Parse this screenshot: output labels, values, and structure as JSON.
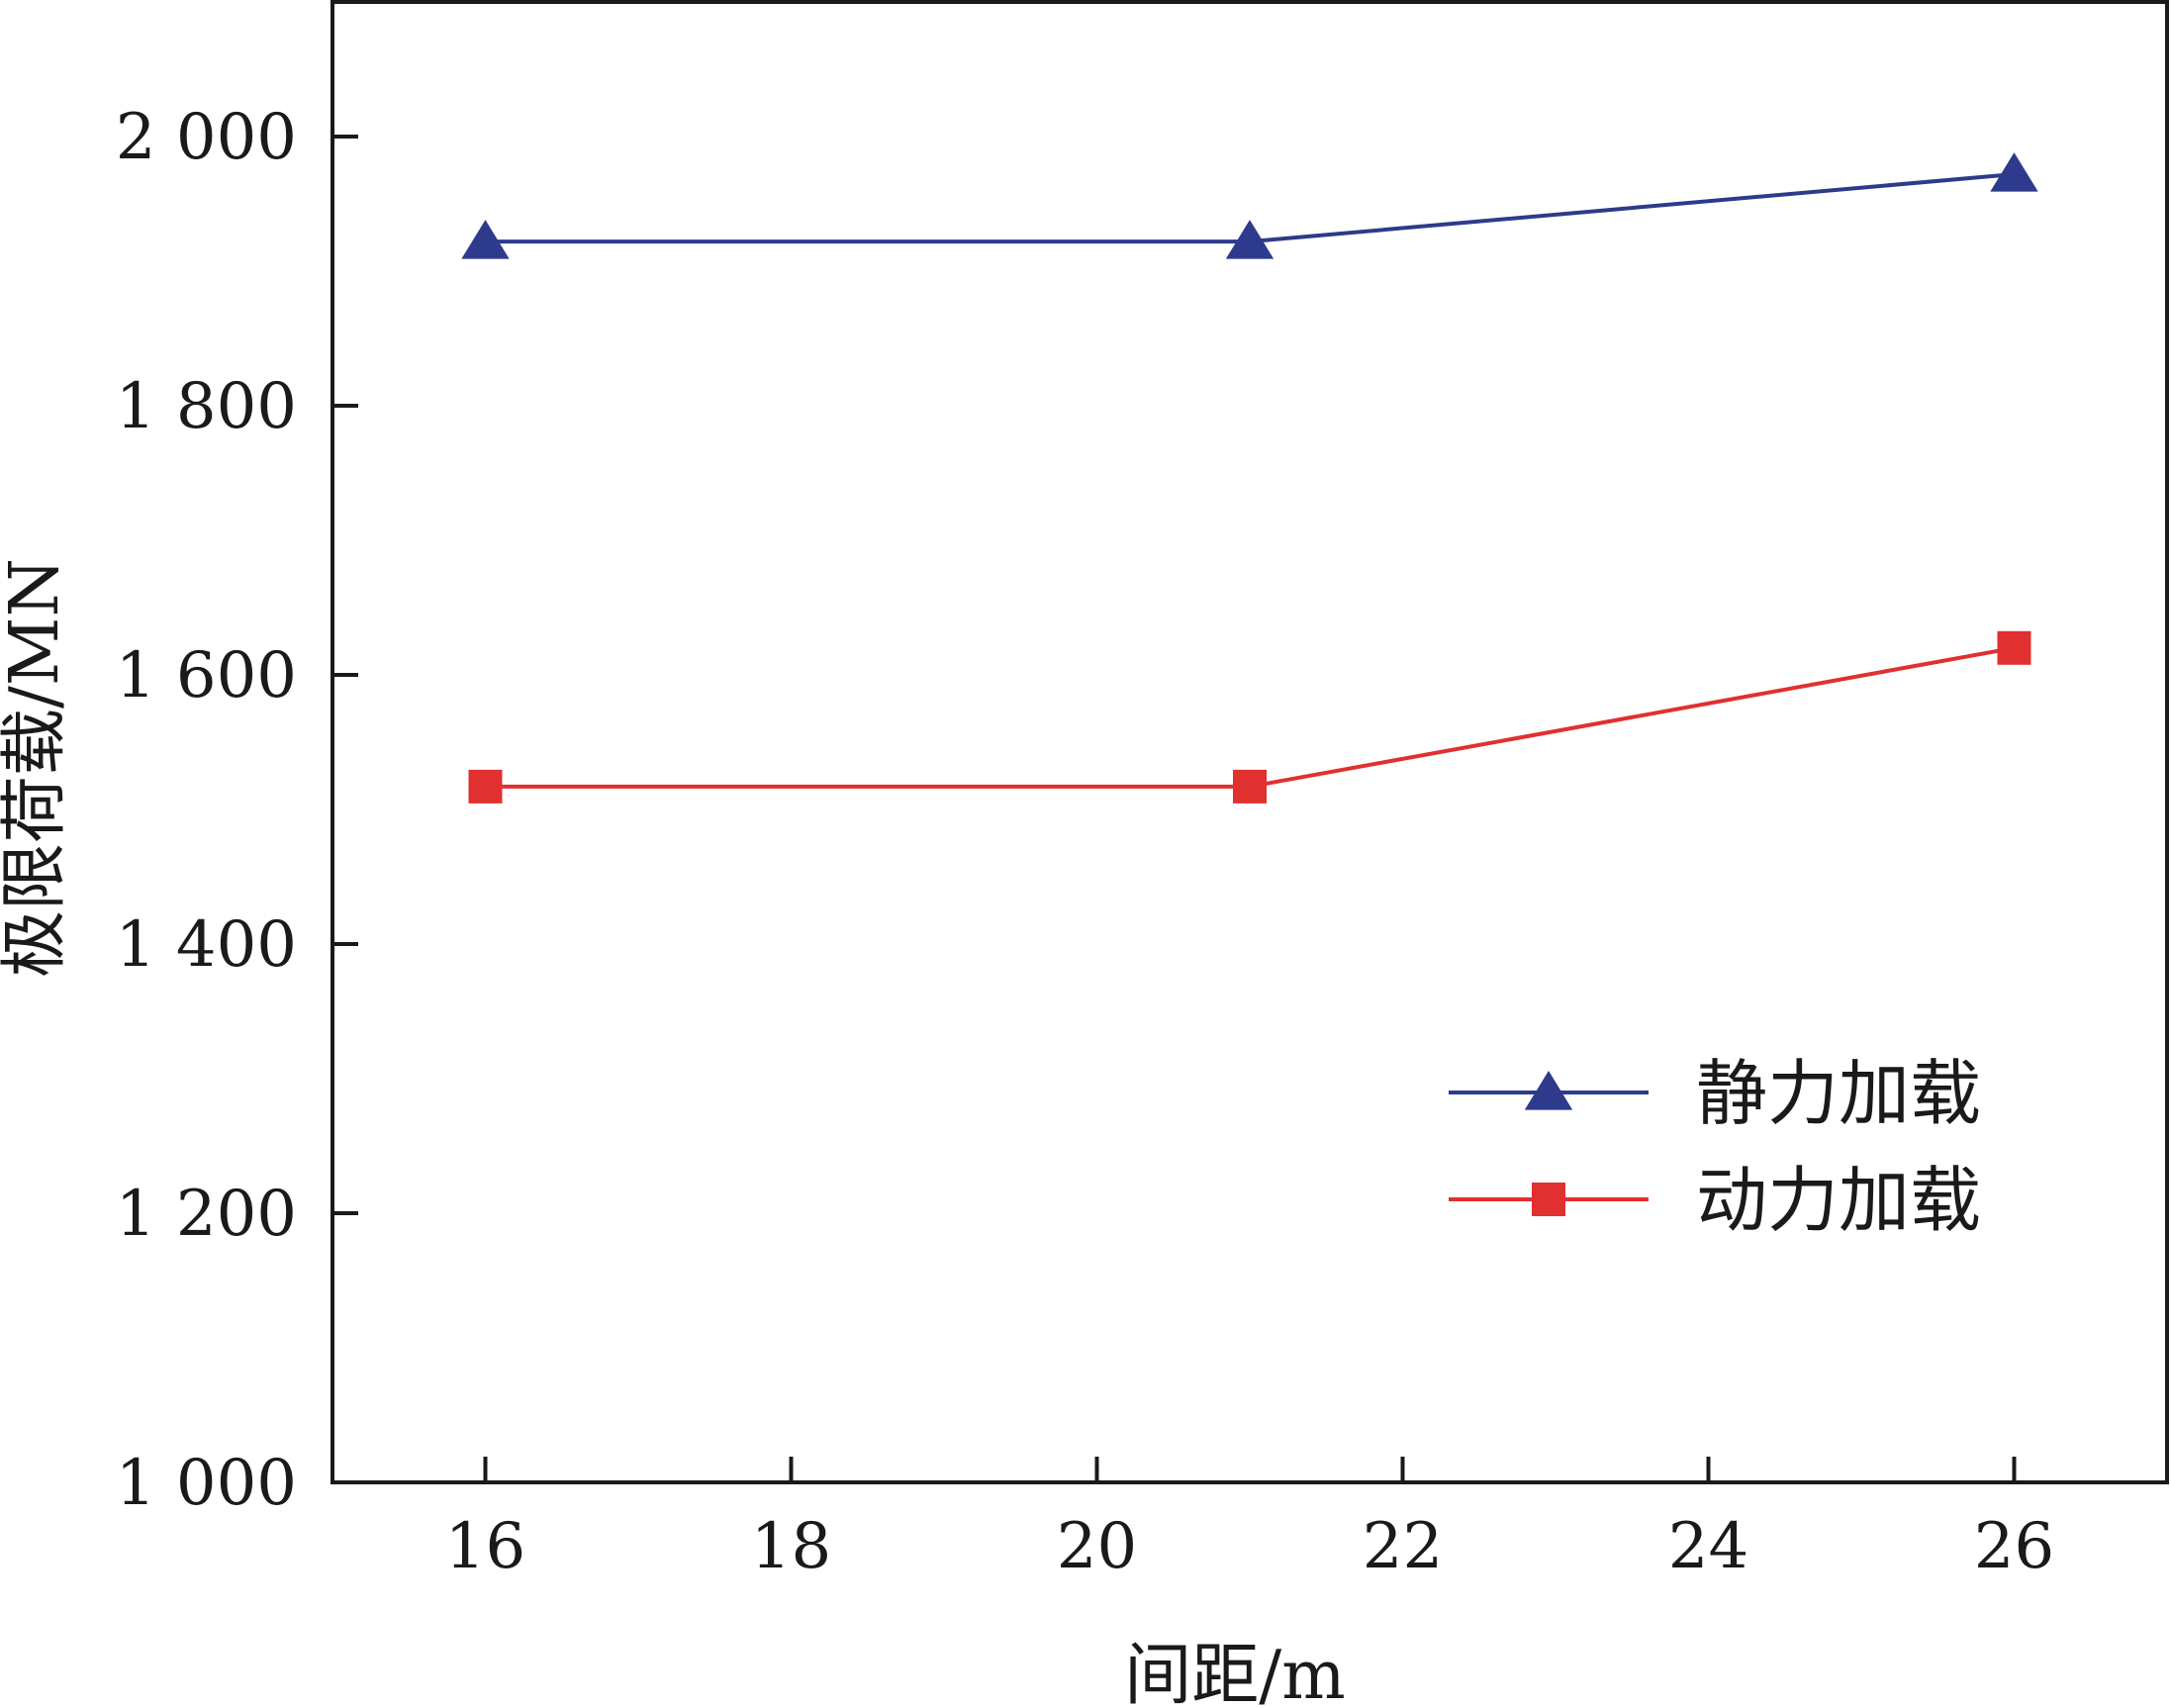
{
  "chart_data": {
    "type": "line",
    "xlabel": "间距/m",
    "ylabel": "极限荷载/MN",
    "xlim": [
      15,
      27
    ],
    "ylim": [
      1000,
      2100
    ],
    "x_ticks": [
      16,
      18,
      20,
      22,
      24,
      26
    ],
    "y_ticks": [
      1000,
      1200,
      1400,
      1600,
      1800,
      2000
    ],
    "x_tick_labels": [
      "16",
      "18",
      "20",
      "22",
      "24",
      "26"
    ],
    "y_tick_labels": [
      "1 000",
      "1 200",
      "1 400",
      "1 600",
      "1 800",
      "2 000"
    ],
    "grid": false,
    "legend_position": "lower-right",
    "series": [
      {
        "name": "静力加载",
        "marker": "triangle",
        "color": "#2e3a8c",
        "x": [
          16,
          21,
          26
        ],
        "y": [
          1922,
          1922,
          1972
        ]
      },
      {
        "name": "动力加载",
        "marker": "square",
        "color": "#e03030",
        "x": [
          16,
          21,
          26
        ],
        "y": [
          1517,
          1517,
          1620
        ]
      }
    ]
  }
}
